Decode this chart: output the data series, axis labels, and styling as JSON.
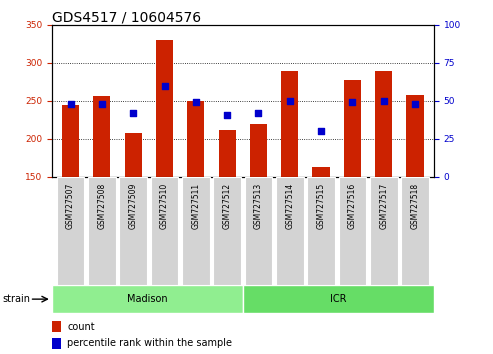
{
  "title": "GDS4517 / 10604576",
  "samples": [
    "GSM727507",
    "GSM727508",
    "GSM727509",
    "GSM727510",
    "GSM727511",
    "GSM727512",
    "GSM727513",
    "GSM727514",
    "GSM727515",
    "GSM727516",
    "GSM727517",
    "GSM727518"
  ],
  "bar_values": [
    245,
    257,
    208,
    330,
    250,
    212,
    220,
    289,
    163,
    278,
    289,
    258
  ],
  "percentile_values": [
    48,
    48,
    42,
    60,
    49,
    41,
    42,
    50,
    30,
    49,
    50,
    48
  ],
  "bar_color": "#CC2200",
  "dot_color": "#0000CC",
  "ylim_left": [
    150,
    350
  ],
  "ylim_right": [
    0,
    100
  ],
  "yticks_left": [
    150,
    200,
    250,
    300,
    350
  ],
  "yticks_right": [
    0,
    25,
    50,
    75,
    100
  ],
  "grid_values": [
    200,
    250,
    300
  ],
  "n_madison": 6,
  "n_icr": 6,
  "madison_color": "#90EE90",
  "icr_color": "#66DD66",
  "strain_label": "strain",
  "legend_count": "count",
  "legend_percentile": "percentile rank within the sample",
  "left_tick_color": "#CC2200",
  "right_tick_color": "#0000CC",
  "bar_width": 0.55,
  "tick_label_fontsize": 6.5,
  "title_fontsize": 10
}
